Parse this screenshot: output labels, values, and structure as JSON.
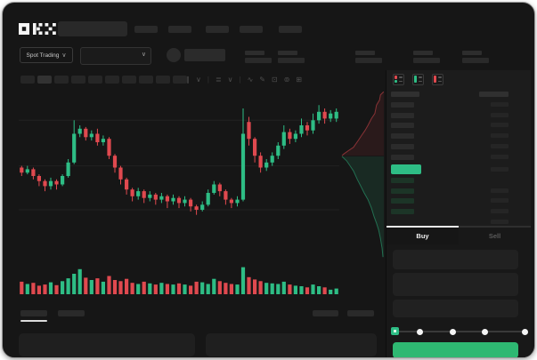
{
  "brand": {
    "name": "OKX"
  },
  "colors": {
    "green": "#2ebd85",
    "red": "#e0494f",
    "button_green": "#2eb872",
    "price_highlight": "#2ebd85"
  },
  "topnav": {
    "placeholder_count": 5
  },
  "market_header": {
    "market_type_label": "Spot Trading",
    "stat_pair_count": 5
  },
  "toolbar": {
    "timeframe_count": 10,
    "active_timeframe_index": 1,
    "icon_glyphs": [
      {
        "name": "candle-type-icon",
        "glyph": "∥"
      },
      {
        "name": "chevron-down-icon",
        "glyph": "∨"
      },
      {
        "name": "divider",
        "glyph": "|"
      },
      {
        "name": "indicator-menu-icon",
        "glyph": "≣"
      },
      {
        "name": "chevron-down-icon",
        "glyph": "∨"
      },
      {
        "name": "divider",
        "glyph": "|"
      },
      {
        "name": "line-tool-icon",
        "glyph": "∿"
      },
      {
        "name": "draw-tool-icon",
        "glyph": "✎"
      },
      {
        "name": "camera-icon",
        "glyph": "⊡"
      },
      {
        "name": "settings-icon",
        "glyph": "⊚"
      },
      {
        "name": "fullscreen-icon",
        "glyph": "⊞"
      }
    ]
  },
  "chart_data": [
    {
      "type": "candlestick",
      "title": "",
      "xlabel": "",
      "ylabel": "",
      "ylim": [
        0,
        100
      ],
      "grid": true,
      "gridline_values": [
        83,
        56,
        30
      ],
      "candles_ochl_note": "each candle is [open, close, low, high] on 0-100 scale",
      "candles": [
        [
          55,
          52,
          50,
          56
        ],
        [
          52,
          54,
          51,
          56
        ],
        [
          54,
          50,
          48,
          55
        ],
        [
          50,
          47,
          44,
          51
        ],
        [
          47,
          44,
          41,
          48
        ],
        [
          44,
          47,
          42,
          49
        ],
        [
          47,
          45,
          42,
          48
        ],
        [
          45,
          50,
          44,
          51
        ],
        [
          50,
          58,
          49,
          60
        ],
        [
          58,
          75,
          57,
          83
        ],
        [
          75,
          78,
          73,
          80
        ],
        [
          78,
          73,
          71,
          79
        ],
        [
          73,
          75,
          71,
          77
        ],
        [
          75,
          70,
          68,
          78
        ],
        [
          70,
          72,
          68,
          74
        ],
        [
          72,
          62,
          60,
          73
        ],
        [
          62,
          55,
          52,
          63
        ],
        [
          55,
          48,
          45,
          56
        ],
        [
          48,
          42,
          39,
          49
        ],
        [
          42,
          38,
          35,
          43
        ],
        [
          38,
          41,
          36,
          43
        ],
        [
          41,
          37,
          34,
          42
        ],
        [
          37,
          39,
          35,
          41
        ],
        [
          39,
          36,
          33,
          40
        ],
        [
          36,
          38,
          34,
          40
        ],
        [
          38,
          35,
          31,
          39
        ],
        [
          35,
          37,
          33,
          39
        ],
        [
          37,
          34,
          31,
          38
        ],
        [
          34,
          36,
          32,
          38
        ],
        [
          36,
          32,
          29,
          37
        ],
        [
          32,
          30,
          27,
          33
        ],
        [
          30,
          33,
          29,
          35
        ],
        [
          33,
          40,
          32,
          42
        ],
        [
          40,
          45,
          39,
          47
        ],
        [
          45,
          41,
          38,
          46
        ],
        [
          41,
          36,
          33,
          42
        ],
        [
          36,
          34,
          31,
          37
        ],
        [
          34,
          36,
          32,
          38
        ],
        [
          36,
          75,
          35,
          90
        ],
        [
          82,
          72,
          68,
          85
        ],
        [
          72,
          62,
          58,
          73
        ],
        [
          62,
          55,
          52,
          64
        ],
        [
          55,
          58,
          53,
          60
        ],
        [
          58,
          62,
          56,
          64
        ],
        [
          62,
          68,
          60,
          70
        ],
        [
          68,
          76,
          66,
          80
        ],
        [
          76,
          72,
          69,
          78
        ],
        [
          72,
          75,
          70,
          77
        ],
        [
          75,
          80,
          73,
          84
        ],
        [
          80,
          77,
          74,
          82
        ],
        [
          77,
          83,
          75,
          87
        ],
        [
          83,
          88,
          81,
          92
        ],
        [
          88,
          84,
          81,
          90
        ],
        [
          84,
          87,
          82,
          89
        ],
        [
          84,
          88,
          82,
          90
        ]
      ],
      "volume": [
        44,
        36,
        40,
        30,
        34,
        42,
        32,
        46,
        56,
        72,
        88,
        58,
        50,
        56,
        44,
        64,
        50,
        46,
        54,
        40,
        36,
        44,
        38,
        34,
        40,
        36,
        34,
        38,
        34,
        30,
        44,
        42,
        36,
        54,
        46,
        40,
        36,
        34,
        95,
        60,
        52,
        46,
        40,
        38,
        36,
        44,
        34,
        30,
        28,
        24,
        34,
        28,
        24,
        16,
        20
      ]
    },
    {
      "type": "area",
      "title": "depth",
      "orientation": "vertical",
      "asks_points_norm": [
        [
          1,
          0
        ],
        [
          0.92,
          0.02
        ],
        [
          0.9,
          0.05
        ],
        [
          0.83,
          0.08
        ],
        [
          0.79,
          0.13
        ],
        [
          0.71,
          0.16
        ],
        [
          0.63,
          0.2
        ],
        [
          0.56,
          0.23
        ],
        [
          0.48,
          0.26
        ],
        [
          0.4,
          0.29
        ],
        [
          0.29,
          0.33
        ],
        [
          0.17,
          0.35
        ],
        [
          0.06,
          0.37
        ],
        [
          0.02,
          0.38
        ]
      ],
      "bids_points_norm": [
        [
          0.02,
          0.384
        ],
        [
          0.13,
          0.41
        ],
        [
          0.21,
          0.44
        ],
        [
          0.29,
          0.47
        ],
        [
          0.38,
          0.52
        ],
        [
          0.46,
          0.56
        ],
        [
          0.54,
          0.6
        ],
        [
          0.63,
          0.64
        ],
        [
          0.71,
          0.69
        ],
        [
          0.77,
          0.74
        ],
        [
          0.83,
          0.78
        ],
        [
          0.88,
          0.82
        ],
        [
          0.92,
          0.87
        ],
        [
          0.96,
          0.93
        ],
        [
          0.98,
          0.98
        ]
      ]
    }
  ],
  "order_book": {
    "view_icons": [
      "book-both-icon",
      "book-bids-icon",
      "book-asks-icon"
    ],
    "ask_row_count": 6,
    "price_row": {
      "has_right_value": true
    },
    "bid_rows": [
      {
        "left": true,
        "right": false
      },
      {
        "left": true,
        "right": true
      },
      {
        "left": true,
        "right": true
      },
      {
        "left": true,
        "right": true
      },
      {
        "left": false,
        "right": true
      }
    ]
  },
  "trade_panel": {
    "tabs": [
      {
        "label": "Buy",
        "active": true
      },
      {
        "label": "Sell",
        "active": false
      }
    ],
    "input_count": 3,
    "slider": {
      "stops": 5,
      "active_stop_index": 0
    },
    "submit_button": {
      "label": ""
    }
  },
  "chart_footer": {
    "left_tab_count": 2,
    "active_left_tab_index": 0,
    "right_tab_count": 2
  }
}
